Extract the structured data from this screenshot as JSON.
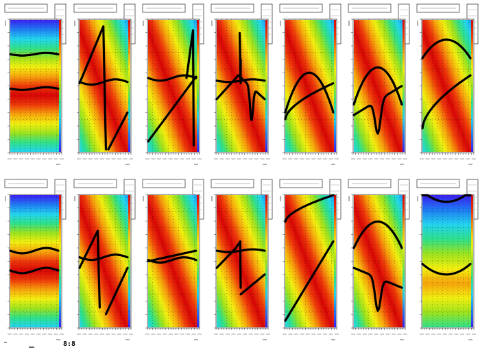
{
  "footer": {
    "label": "8:8"
  },
  "chart_data": {
    "type": "heatmap",
    "rows": 2,
    "cols": 7,
    "palette": [
      "#3a1ff0",
      "#1f7bf2",
      "#23d3f0",
      "#2fe08a",
      "#9be21e",
      "#f2ee10",
      "#f5a30c",
      "#ee3a0a",
      "#d60606"
    ],
    "marker_color": "#000000",
    "panels": [
      {
        "pattern": "horizontal",
        "curves": [
          {
            "kind": "flat",
            "y": 0.26,
            "amp": 0.01
          },
          {
            "kind": "flat",
            "y": 0.52,
            "amp": 0.01
          }
        ]
      },
      {
        "pattern": "diagonal",
        "curves": [
          {
            "kind": "spike",
            "x0": 0.0,
            "y0": 0.48,
            "x1": 0.55,
            "y1": 0.05,
            "drop": 0.98
          },
          {
            "kind": "flat",
            "y": 0.47,
            "amp": 0.02
          },
          {
            "kind": "line",
            "x0": 0.6,
            "y0": 0.98,
            "x1": 1.0,
            "y1": 0.7
          }
        ]
      },
      {
        "pattern": "diagonal",
        "curves": [
          {
            "kind": "line",
            "x0": 0.0,
            "y0": 0.92,
            "x1": 1.0,
            "y1": 0.43
          },
          {
            "kind": "flat",
            "y": 0.44,
            "amp": 0.02
          },
          {
            "kind": "spike",
            "x0": 0.8,
            "y0": 0.44,
            "x1": 0.95,
            "y1": 0.08,
            "drop": 0.95
          }
        ]
      },
      {
        "pattern": "diagonal",
        "curves": [
          {
            "kind": "line",
            "x0": 0.0,
            "y0": 0.6,
            "x1": 0.45,
            "y1": 0.42
          },
          {
            "kind": "flat",
            "y": 0.46,
            "amp": 0.01
          },
          {
            "kind": "dip",
            "x0": 0.45,
            "y0": 0.42,
            "x1": 1.0,
            "y1": 0.6
          },
          {
            "kind": "spike",
            "x0": 0.48,
            "y0": 0.1,
            "x1": 0.5,
            "y1": 0.48,
            "drop": 0.3
          }
        ]
      },
      {
        "pattern": "diagonal",
        "curves": [
          {
            "kind": "u",
            "y": 0.4,
            "depth": 0.3
          },
          {
            "kind": "rise",
            "x0": 0.0,
            "y0": 0.75,
            "x1": 1.0,
            "y1": 0.48
          }
        ]
      },
      {
        "pattern": "diagonal",
        "curves": [
          {
            "kind": "u",
            "y": 0.36,
            "depth": 0.28
          },
          {
            "kind": "dip",
            "x0": 0.0,
            "y0": 0.72,
            "x1": 1.0,
            "y1": 0.5
          }
        ]
      },
      {
        "pattern": "diagonal",
        "curves": [
          {
            "kind": "u",
            "y": 0.15,
            "depth": 0.14
          },
          {
            "kind": "rise",
            "x0": 0.0,
            "y0": 0.82,
            "x1": 1.0,
            "y1": 0.42
          }
        ]
      },
      {
        "pattern": "horizontal",
        "curves": [
          {
            "kind": "flat",
            "y": 0.42,
            "amp": 0.02
          },
          {
            "kind": "flat",
            "y": 0.57,
            "amp": 0.02
          }
        ]
      },
      {
        "pattern": "diagonal",
        "curves": [
          {
            "kind": "spike",
            "x0": 0.0,
            "y0": 0.55,
            "x1": 0.42,
            "y1": 0.27,
            "drop": 0.85
          },
          {
            "kind": "flat",
            "y": 0.47,
            "amp": 0.02
          },
          {
            "kind": "line",
            "x0": 0.55,
            "y0": 0.9,
            "x1": 1.0,
            "y1": 0.55
          }
        ]
      },
      {
        "pattern": "diagonal",
        "curves": [
          {
            "kind": "flat",
            "y": 0.49,
            "amp": 0.02
          },
          {
            "kind": "line",
            "x0": 0.0,
            "y0": 0.5,
            "x1": 1.0,
            "y1": 0.42
          }
        ]
      },
      {
        "pattern": "diagonal",
        "curves": [
          {
            "kind": "line",
            "x0": 0.0,
            "y0": 0.55,
            "x1": 0.4,
            "y1": 0.4
          },
          {
            "kind": "spike",
            "x0": 0.4,
            "y0": 0.4,
            "x1": 0.5,
            "y1": 0.35,
            "drop": 0.7
          },
          {
            "kind": "line",
            "x0": 0.5,
            "y0": 0.75,
            "x1": 1.0,
            "y1": 0.6
          },
          {
            "kind": "flat",
            "y": 0.42,
            "amp": 0.01
          }
        ]
      },
      {
        "pattern": "diagonal",
        "curves": [
          {
            "kind": "line",
            "x0": 0.0,
            "y0": 0.95,
            "x1": 1.0,
            "y1": 0.35
          },
          {
            "kind": "rise",
            "x0": 0.0,
            "y0": 0.2,
            "x1": 1.0,
            "y1": 0.0
          }
        ]
      },
      {
        "pattern": "diagonal",
        "curves": [
          {
            "kind": "u",
            "y": 0.2,
            "depth": 0.2
          },
          {
            "kind": "dip",
            "x0": 0.0,
            "y0": 0.55,
            "x1": 1.0,
            "y1": 0.7
          }
        ]
      },
      {
        "pattern": "blob",
        "curves": [
          {
            "kind": "u",
            "y": 0.05,
            "depth": -0.08
          },
          {
            "kind": "u",
            "y": 0.6,
            "depth": -0.08
          }
        ]
      }
    ]
  }
}
